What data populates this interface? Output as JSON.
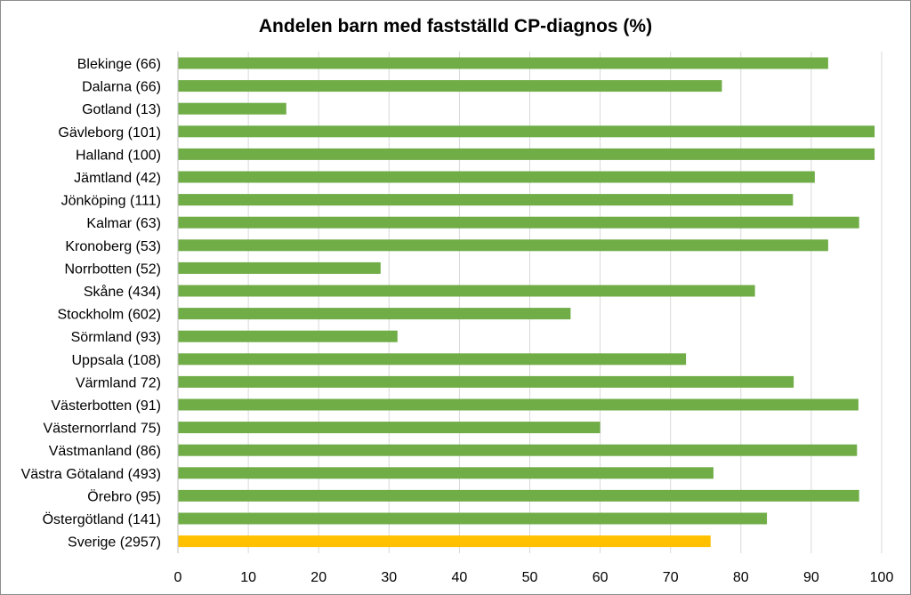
{
  "chart_data": {
    "type": "bar",
    "orientation": "horizontal",
    "title": "Andelen barn med fastställd CP-diagnos (%)",
    "xlabel": "",
    "ylabel": "",
    "xlim": [
      0,
      100
    ],
    "xticks": [
      "0",
      "10",
      "20",
      "30",
      "40",
      "50",
      "60",
      "70",
      "80",
      "90",
      "100"
    ],
    "grid": true,
    "legend": "none",
    "categories": [
      "Blekinge (66)",
      "Dalarna (66)",
      "Gotland (13)",
      "Gävleborg (101)",
      "Halland (100)",
      "Jämtland (42)",
      "Jönköping (111)",
      "Kalmar (63)",
      "Kronoberg (53)",
      "Norrbotten (52)",
      "Skåne (434)",
      "Stockholm (602)",
      "Sörmland (93)",
      "Uppsala (108)",
      "Värmland 72)",
      "Västerbotten (91)",
      "Västernorrland 75)",
      "Västmanland (86)",
      "Västra Götaland (493)",
      "Örebro (95)",
      "Östergötland (141)",
      "Sverige (2957)"
    ],
    "values": [
      92.4,
      77.3,
      15.4,
      99.0,
      99.0,
      90.5,
      87.4,
      96.8,
      92.4,
      28.8,
      82.0,
      55.8,
      31.2,
      72.2,
      87.5,
      96.7,
      60.0,
      96.5,
      76.1,
      96.8,
      83.7,
      75.7
    ],
    "colors": {
      "default": "#70ad47",
      "highlight": "#ffc000",
      "highlight_category": "Sverige (2957)"
    }
  }
}
